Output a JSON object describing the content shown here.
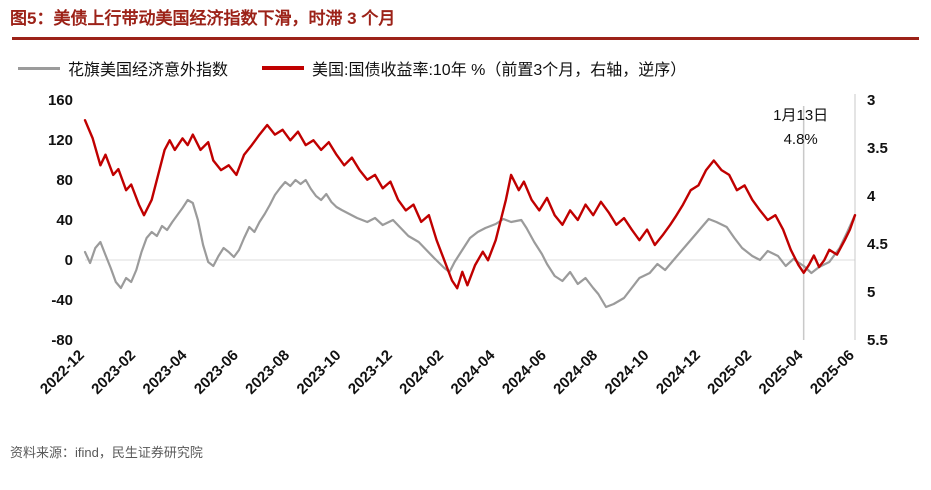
{
  "header": {
    "title": "图5：美债上行带动美国经济指数下滑，时滞 3 个月",
    "accent_color": "#9c2218"
  },
  "footer": {
    "source": "资料来源：ifind，民生证券研究院"
  },
  "chart_data": {
    "type": "line",
    "title": "图5：美债上行带动美国经济指数下滑，时滞 3 个月",
    "legend": [
      {
        "label": "花旗美国经济意外指数",
        "color": "#9b9b9b"
      },
      {
        "label": "美国:国债收益率:10年 %（前置3个月，右轴，逆序）",
        "color": "#c00000"
      }
    ],
    "x_tick_labels": [
      "2022-12",
      "2023-02",
      "2023-04",
      "2023-06",
      "2023-08",
      "2023-10",
      "2023-12",
      "2024-02",
      "2024-04",
      "2024-06",
      "2024-08",
      "2024-10",
      "2024-12",
      "2025-02",
      "2025-04",
      "2025-06"
    ],
    "x_tick_positions": [
      0,
      2,
      4,
      6,
      8,
      10,
      12,
      14,
      16,
      18,
      20,
      22,
      24,
      26,
      28,
      30
    ],
    "left_axis": {
      "min": -80,
      "max": 160,
      "ticks": [
        160,
        120,
        80,
        40,
        0,
        -40,
        -80
      ]
    },
    "right_axis": {
      "min": 3,
      "max": 5.5,
      "ticks": [
        3,
        3.5,
        4,
        4.5,
        5,
        5.5
      ],
      "inverted": true
    },
    "grid": {
      "zero_line": true,
      "zero_line_color": "#dcdcdc",
      "right_spine_color": "#c9c9c9"
    },
    "annotation": {
      "x": 28,
      "line_color": "#c9c9c9",
      "label_line1": "1月13日",
      "label_line2": "4.8%"
    },
    "series": [
      {
        "name": "花旗美国经济意外指数",
        "axis": "left",
        "color": "#9b9b9b",
        "width": 2.2,
        "points": [
          [
            0,
            8
          ],
          [
            0.2,
            -3
          ],
          [
            0.4,
            12
          ],
          [
            0.6,
            18
          ],
          [
            0.8,
            5
          ],
          [
            1,
            -8
          ],
          [
            1.2,
            -22
          ],
          [
            1.4,
            -28
          ],
          [
            1.6,
            -18
          ],
          [
            1.8,
            -22
          ],
          [
            2,
            -10
          ],
          [
            2.2,
            8
          ],
          [
            2.4,
            22
          ],
          [
            2.6,
            28
          ],
          [
            2.8,
            24
          ],
          [
            3,
            34
          ],
          [
            3.2,
            30
          ],
          [
            3.4,
            38
          ],
          [
            3.6,
            45
          ],
          [
            3.8,
            52
          ],
          [
            4,
            60
          ],
          [
            4.2,
            57
          ],
          [
            4.4,
            40
          ],
          [
            4.6,
            15
          ],
          [
            4.8,
            -2
          ],
          [
            5,
            -6
          ],
          [
            5.2,
            4
          ],
          [
            5.4,
            12
          ],
          [
            5.6,
            8
          ],
          [
            5.8,
            3
          ],
          [
            6,
            10
          ],
          [
            6.2,
            22
          ],
          [
            6.4,
            33
          ],
          [
            6.6,
            28
          ],
          [
            6.8,
            38
          ],
          [
            7,
            46
          ],
          [
            7.2,
            55
          ],
          [
            7.4,
            65
          ],
          [
            7.6,
            72
          ],
          [
            7.8,
            78
          ],
          [
            8,
            74
          ],
          [
            8.2,
            80
          ],
          [
            8.4,
            76
          ],
          [
            8.6,
            80
          ],
          [
            8.8,
            71
          ],
          [
            9,
            64
          ],
          [
            9.2,
            60
          ],
          [
            9.4,
            66
          ],
          [
            9.6,
            58
          ],
          [
            9.8,
            53
          ],
          [
            10,
            50
          ],
          [
            10.3,
            46
          ],
          [
            10.6,
            42
          ],
          [
            11,
            38
          ],
          [
            11.3,
            42
          ],
          [
            11.6,
            35
          ],
          [
            12,
            40
          ],
          [
            12.3,
            32
          ],
          [
            12.6,
            24
          ],
          [
            13,
            18
          ],
          [
            13.3,
            10
          ],
          [
            13.6,
            2
          ],
          [
            14,
            -8
          ],
          [
            14.2,
            -12
          ],
          [
            14.4,
            -2
          ],
          [
            14.6,
            6
          ],
          [
            15,
            22
          ],
          [
            15.3,
            28
          ],
          [
            15.6,
            32
          ],
          [
            16,
            36
          ],
          [
            16.3,
            41
          ],
          [
            16.6,
            38
          ],
          [
            17,
            40
          ],
          [
            17.2,
            32
          ],
          [
            17.5,
            18
          ],
          [
            17.8,
            6
          ],
          [
            18,
            -4
          ],
          [
            18.3,
            -16
          ],
          [
            18.6,
            -21
          ],
          [
            18.9,
            -12
          ],
          [
            19.2,
            -24
          ],
          [
            19.5,
            -18
          ],
          [
            19.8,
            -28
          ],
          [
            20,
            -34
          ],
          [
            20.3,
            -47
          ],
          [
            20.6,
            -44
          ],
          [
            21,
            -38
          ],
          [
            21.3,
            -28
          ],
          [
            21.6,
            -18
          ],
          [
            22,
            -13
          ],
          [
            22.3,
            -4
          ],
          [
            22.6,
            -10
          ],
          [
            23,
            2
          ],
          [
            23.4,
            14
          ],
          [
            23.8,
            26
          ],
          [
            24,
            32
          ],
          [
            24.3,
            41
          ],
          [
            24.6,
            38
          ],
          [
            25,
            33
          ],
          [
            25.3,
            22
          ],
          [
            25.6,
            12
          ],
          [
            26,
            4
          ],
          [
            26.3,
            0
          ],
          [
            26.6,
            9
          ],
          [
            27,
            4
          ],
          [
            27.3,
            -6
          ],
          [
            27.6,
            1
          ],
          [
            28,
            -6
          ],
          [
            28.3,
            -13
          ],
          [
            28.6,
            -7
          ],
          [
            29,
            -2
          ],
          [
            29.4,
            12
          ],
          [
            29.7,
            28
          ],
          [
            30,
            45
          ]
        ]
      },
      {
        "name": "美国:国债收益率:10年",
        "axis": "right",
        "color": "#c00000",
        "width": 2.4,
        "points": [
          [
            0,
            3.21
          ],
          [
            0.3,
            3.4
          ],
          [
            0.6,
            3.68
          ],
          [
            0.8,
            3.57
          ],
          [
            1.1,
            3.78
          ],
          [
            1.3,
            3.72
          ],
          [
            1.6,
            3.94
          ],
          [
            1.8,
            3.88
          ],
          [
            2.1,
            4.09
          ],
          [
            2.3,
            4.2
          ],
          [
            2.6,
            4.04
          ],
          [
            2.9,
            3.73
          ],
          [
            3.1,
            3.52
          ],
          [
            3.3,
            3.42
          ],
          [
            3.5,
            3.52
          ],
          [
            3.8,
            3.4
          ],
          [
            4,
            3.47
          ],
          [
            4.2,
            3.36
          ],
          [
            4.5,
            3.52
          ],
          [
            4.8,
            3.44
          ],
          [
            5,
            3.63
          ],
          [
            5.3,
            3.73
          ],
          [
            5.6,
            3.68
          ],
          [
            5.9,
            3.78
          ],
          [
            6.2,
            3.57
          ],
          [
            6.5,
            3.47
          ],
          [
            6.8,
            3.36
          ],
          [
            7.1,
            3.26
          ],
          [
            7.4,
            3.36
          ],
          [
            7.7,
            3.31
          ],
          [
            8,
            3.42
          ],
          [
            8.3,
            3.33
          ],
          [
            8.6,
            3.47
          ],
          [
            8.9,
            3.42
          ],
          [
            9.2,
            3.52
          ],
          [
            9.5,
            3.44
          ],
          [
            9.8,
            3.57
          ],
          [
            10.1,
            3.68
          ],
          [
            10.4,
            3.6
          ],
          [
            10.7,
            3.73
          ],
          [
            11,
            3.83
          ],
          [
            11.3,
            3.78
          ],
          [
            11.6,
            3.92
          ],
          [
            11.9,
            3.85
          ],
          [
            12.2,
            4.04
          ],
          [
            12.5,
            4.15
          ],
          [
            12.8,
            4.09
          ],
          [
            13.1,
            4.27
          ],
          [
            13.4,
            4.2
          ],
          [
            13.7,
            4.46
          ],
          [
            14,
            4.67
          ],
          [
            14.3,
            4.88
          ],
          [
            14.5,
            4.96
          ],
          [
            14.7,
            4.79
          ],
          [
            14.9,
            4.93
          ],
          [
            15.2,
            4.72
          ],
          [
            15.5,
            4.58
          ],
          [
            15.7,
            4.67
          ],
          [
            16,
            4.46
          ],
          [
            16.2,
            4.25
          ],
          [
            16.4,
            4.04
          ],
          [
            16.6,
            3.78
          ],
          [
            16.9,
            3.94
          ],
          [
            17.1,
            3.85
          ],
          [
            17.4,
            4.04
          ],
          [
            17.7,
            4.15
          ],
          [
            18,
            4.02
          ],
          [
            18.3,
            4.2
          ],
          [
            18.6,
            4.3
          ],
          [
            18.9,
            4.15
          ],
          [
            19.2,
            4.25
          ],
          [
            19.5,
            4.09
          ],
          [
            19.8,
            4.2
          ],
          [
            20.1,
            4.06
          ],
          [
            20.4,
            4.17
          ],
          [
            20.7,
            4.3
          ],
          [
            21,
            4.23
          ],
          [
            21.3,
            4.35
          ],
          [
            21.6,
            4.46
          ],
          [
            21.9,
            4.35
          ],
          [
            22.2,
            4.51
          ],
          [
            22.5,
            4.41
          ],
          [
            22.8,
            4.3
          ],
          [
            23,
            4.22
          ],
          [
            23.3,
            4.09
          ],
          [
            23.6,
            3.94
          ],
          [
            23.9,
            3.89
          ],
          [
            24.2,
            3.73
          ],
          [
            24.5,
            3.63
          ],
          [
            24.8,
            3.73
          ],
          [
            25.1,
            3.78
          ],
          [
            25.4,
            3.94
          ],
          [
            25.7,
            3.89
          ],
          [
            26,
            4.04
          ],
          [
            26.3,
            4.15
          ],
          [
            26.6,
            4.25
          ],
          [
            26.9,
            4.2
          ],
          [
            27.2,
            4.35
          ],
          [
            27.5,
            4.56
          ],
          [
            27.8,
            4.72
          ],
          [
            28,
            4.8
          ],
          [
            28.2,
            4.72
          ],
          [
            28.4,
            4.62
          ],
          [
            28.6,
            4.74
          ],
          [
            28.8,
            4.67
          ],
          [
            29,
            4.56
          ],
          [
            29.3,
            4.61
          ],
          [
            29.6,
            4.46
          ],
          [
            29.8,
            4.35
          ],
          [
            30,
            4.2
          ]
        ]
      }
    ]
  }
}
